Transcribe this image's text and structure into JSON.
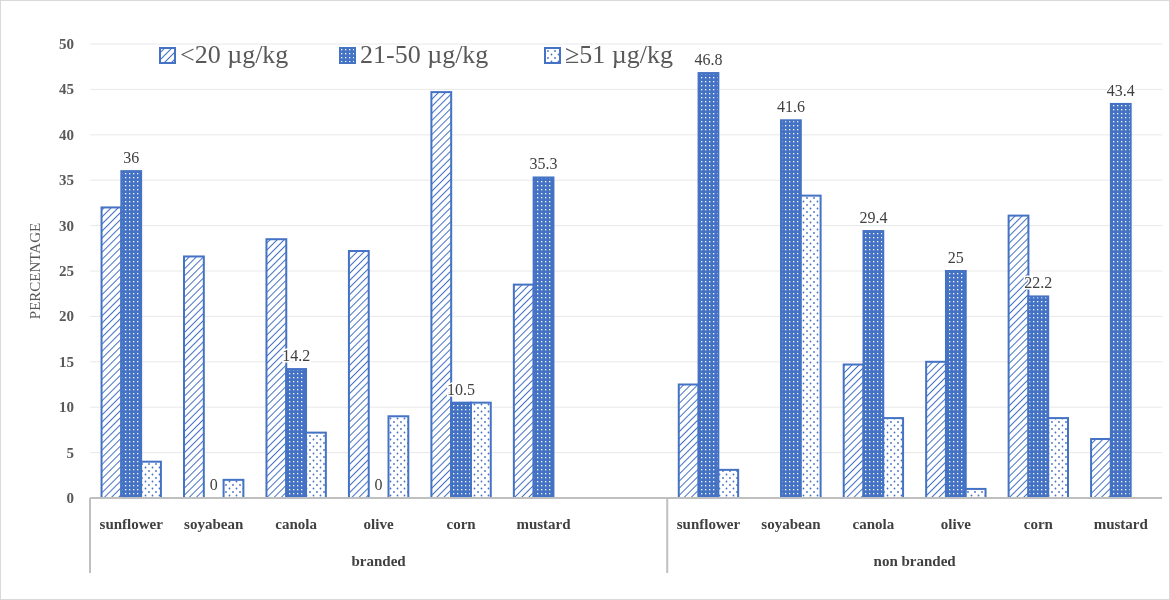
{
  "chart_data": {
    "type": "bar",
    "ylabel": "PERCENTAGE",
    "categories": [
      "sunflower",
      "soyabean",
      "canola",
      "olive",
      "corn",
      "mustard",
      null,
      "sunflower",
      "soyabean",
      "canola",
      "olive",
      "corn",
      "mustard"
    ],
    "series": [
      {
        "name": "<20 µg/kg",
        "color": "#4472c4",
        "values": [
          32,
          26.6,
          28.5,
          27.2,
          44.7,
          23.5,
          null,
          12.5,
          null,
          14.7,
          15,
          31.1,
          6.5
        ]
      },
      {
        "name": "21-50 µg/kg",
        "color": "#4472c4",
        "values": [
          36,
          0,
          14.2,
          0,
          10.5,
          35.3,
          null,
          46.8,
          41.6,
          29.4,
          25,
          22.2,
          43.4
        ],
        "value_labels": [
          "36",
          "0",
          "14.2",
          "0",
          "10.5",
          "35.3",
          null,
          "46.8",
          "41.6",
          "29.4",
          "25",
          "22.2",
          "43.4"
        ]
      },
      {
        "name": "≥51 µg/kg",
        "color": "#4472c4",
        "values": [
          4,
          2,
          7.2,
          9,
          10.5,
          null,
          null,
          3.1,
          33.3,
          8.8,
          1,
          8.8,
          null
        ]
      }
    ],
    "ylim": [
      0,
      50
    ],
    "yticks": [
      0,
      5,
      10,
      15,
      20,
      25,
      30,
      35,
      40,
      45,
      50
    ],
    "grid": "y",
    "legend": "top",
    "annotations": [
      "branded",
      "non branded"
    ]
  }
}
